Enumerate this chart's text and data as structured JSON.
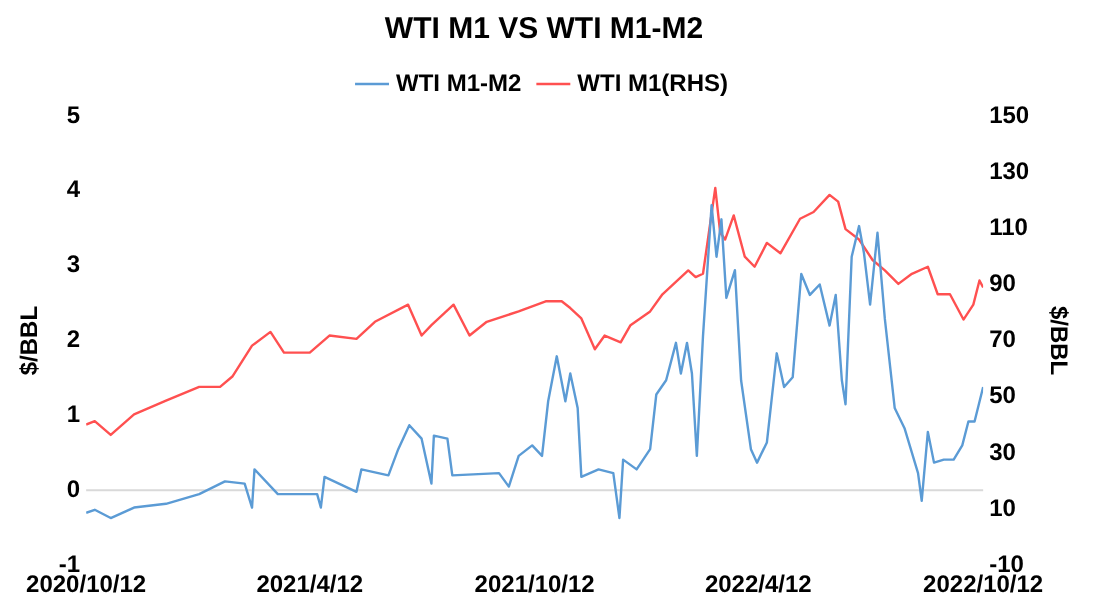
{
  "chart_data": {
    "type": "line",
    "title": "WTI M1 VS WTI M1-M2",
    "ylabel": "$/BBL",
    "y2label": "$/BBL",
    "xlim": [
      "2020-10-12",
      "2022-10-12"
    ],
    "xticks": [
      {
        "value": "2020-10-12",
        "label": "2020/10/12"
      },
      {
        "value": "2021-04-12",
        "label": "2021/4/12"
      },
      {
        "value": "2021-10-12",
        "label": "2021/10/12"
      },
      {
        "value": "2022-04-12",
        "label": "2022/4/12"
      },
      {
        "value": "2022-10-12",
        "label": "2022/10/12"
      }
    ],
    "ylim": [
      -1,
      5
    ],
    "yticks": [
      -1,
      0,
      1,
      2,
      3,
      4,
      5
    ],
    "y2lim": [
      -10,
      150
    ],
    "y2ticks": [
      -10,
      10,
      30,
      50,
      70,
      90,
      110,
      130,
      150
    ],
    "ref_lines": [
      {
        "axis": "y",
        "value": 0,
        "color": "#d9d9d9"
      }
    ],
    "grid": false,
    "legend": "top",
    "marker": "none",
    "line_style": "solid",
    "series": [
      {
        "name": "WTI M1-M2",
        "color": "#5b9bd5",
        "x": [
          "2020-10-12",
          "2020-10-19",
          "2020-11-01",
          "2020-11-20",
          "2020-12-16",
          "2021-01-12",
          "2021-02-02",
          "2021-02-18",
          "2021-02-24",
          "2021-02-26",
          "2021-03-17",
          "2021-04-18",
          "2021-04-21",
          "2021-04-24",
          "2021-05-20",
          "2021-05-24",
          "2021-06-15",
          "2021-06-23",
          "2021-07-02",
          "2021-07-12",
          "2021-07-20",
          "2021-07-22",
          "2021-08-02",
          "2021-08-06",
          "2021-09-13",
          "2021-09-21",
          "2021-09-29",
          "2021-10-10",
          "2021-10-18",
          "2021-10-23",
          "2021-10-30",
          "2021-11-06",
          "2021-11-10",
          "2021-11-16",
          "2021-11-19",
          "2021-12-03",
          "2021-12-15",
          "2021-12-20",
          "2021-12-23",
          "2022-01-03",
          "2022-01-14",
          "2022-01-19",
          "2022-01-27",
          "2022-02-04",
          "2022-02-08",
          "2022-02-13",
          "2022-02-17",
          "2022-02-21",
          "2022-02-26",
          "2022-03-05",
          "2022-03-09",
          "2022-03-13",
          "2022-03-17",
          "2022-03-24",
          "2022-03-29",
          "2022-04-06",
          "2022-04-11",
          "2022-04-19",
          "2022-04-27",
          "2022-05-03",
          "2022-05-10",
          "2022-05-17",
          "2022-05-24",
          "2022-06-01",
          "2022-06-09",
          "2022-06-14",
          "2022-06-19",
          "2022-06-22",
          "2022-06-27",
          "2022-07-03",
          "2022-07-07",
          "2022-07-12",
          "2022-07-18",
          "2022-07-24",
          "2022-08-01",
          "2022-08-09",
          "2022-08-20",
          "2022-08-23",
          "2022-08-28",
          "2022-09-02",
          "2022-09-10",
          "2022-09-18",
          "2022-09-25",
          "2022-09-30",
          "2022-10-05",
          "2022-10-12"
        ],
        "values": [
          -0.3,
          -0.26,
          -0.37,
          -0.23,
          -0.18,
          -0.05,
          0.12,
          0.09,
          -0.23,
          0.28,
          -0.05,
          -0.05,
          -0.23,
          0.18,
          -0.02,
          0.28,
          0.2,
          0.55,
          0.87,
          0.69,
          0.09,
          0.73,
          0.69,
          0.2,
          0.23,
          0.05,
          0.46,
          0.6,
          0.46,
          1.19,
          1.79,
          1.19,
          1.56,
          1.1,
          0.18,
          0.28,
          0.23,
          -0.37,
          0.41,
          0.28,
          0.55,
          1.28,
          1.47,
          1.97,
          1.56,
          1.97,
          1.56,
          0.46,
          2.06,
          3.81,
          3.12,
          3.62,
          2.57,
          2.94,
          1.47,
          0.55,
          0.37,
          0.64,
          1.83,
          1.38,
          1.51,
          2.89,
          2.61,
          2.75,
          2.2,
          2.61,
          1.47,
          1.15,
          3.12,
          3.53,
          3.17,
          2.48,
          3.44,
          2.29,
          1.1,
          0.83,
          0.23,
          -0.14,
          0.78,
          0.37,
          0.41,
          0.41,
          0.6,
          0.92,
          0.92,
          1.38
        ]
      },
      {
        "name": "WTI M1(RHS)",
        "color": "#ff5050",
        "axis": "y2",
        "x": [
          "2020-10-12",
          "2020-10-19",
          "2020-11-01",
          "2020-11-20",
          "2020-12-16",
          "2021-01-12",
          "2021-01-29",
          "2021-02-08",
          "2021-02-24",
          "2021-03-11",
          "2021-03-22",
          "2021-04-12",
          "2021-04-28",
          "2021-05-20",
          "2021-06-04",
          "2021-07-01",
          "2021-07-12",
          "2021-07-20",
          "2021-08-07",
          "2021-08-20",
          "2021-09-03",
          "2021-09-29",
          "2021-10-21",
          "2021-11-03",
          "2021-11-10",
          "2021-11-19",
          "2021-11-30",
          "2021-12-08",
          "2021-12-21",
          "2021-12-29",
          "2022-01-14",
          "2022-01-24",
          "2022-02-14",
          "2022-02-20",
          "2022-02-26",
          "2022-03-08",
          "2022-03-12",
          "2022-03-16",
          "2022-03-23",
          "2022-04-01",
          "2022-04-09",
          "2022-04-19",
          "2022-04-30",
          "2022-05-16",
          "2022-05-27",
          "2022-06-09",
          "2022-06-16",
          "2022-06-22",
          "2022-07-03",
          "2022-07-14",
          "2022-07-24",
          "2022-08-04",
          "2022-08-15",
          "2022-08-28",
          "2022-09-05",
          "2022-09-15",
          "2022-09-26",
          "2022-10-04",
          "2022-10-09",
          "2022-10-12"
        ],
        "values": [
          40.1,
          41.3,
          36.4,
          43.7,
          48.6,
          53.5,
          53.5,
          57.2,
          68.2,
          73.1,
          65.7,
          65.7,
          71.8,
          70.6,
          76.7,
          82.8,
          71.8,
          75.5,
          82.8,
          71.8,
          76.7,
          80.4,
          84.0,
          84.0,
          81.6,
          77.9,
          66.9,
          71.8,
          69.4,
          75.5,
          80.4,
          86.5,
          95.0,
          92.6,
          93.8,
          124.4,
          108.5,
          106.0,
          114.6,
          99.9,
          96.3,
          104.8,
          101.1,
          113.4,
          115.8,
          121.9,
          119.5,
          109.7,
          106.0,
          98.7,
          95.0,
          90.2,
          93.8,
          96.3,
          86.5,
          86.5,
          77.5,
          82.8,
          91.4,
          88.9
        ]
      }
    ]
  }
}
